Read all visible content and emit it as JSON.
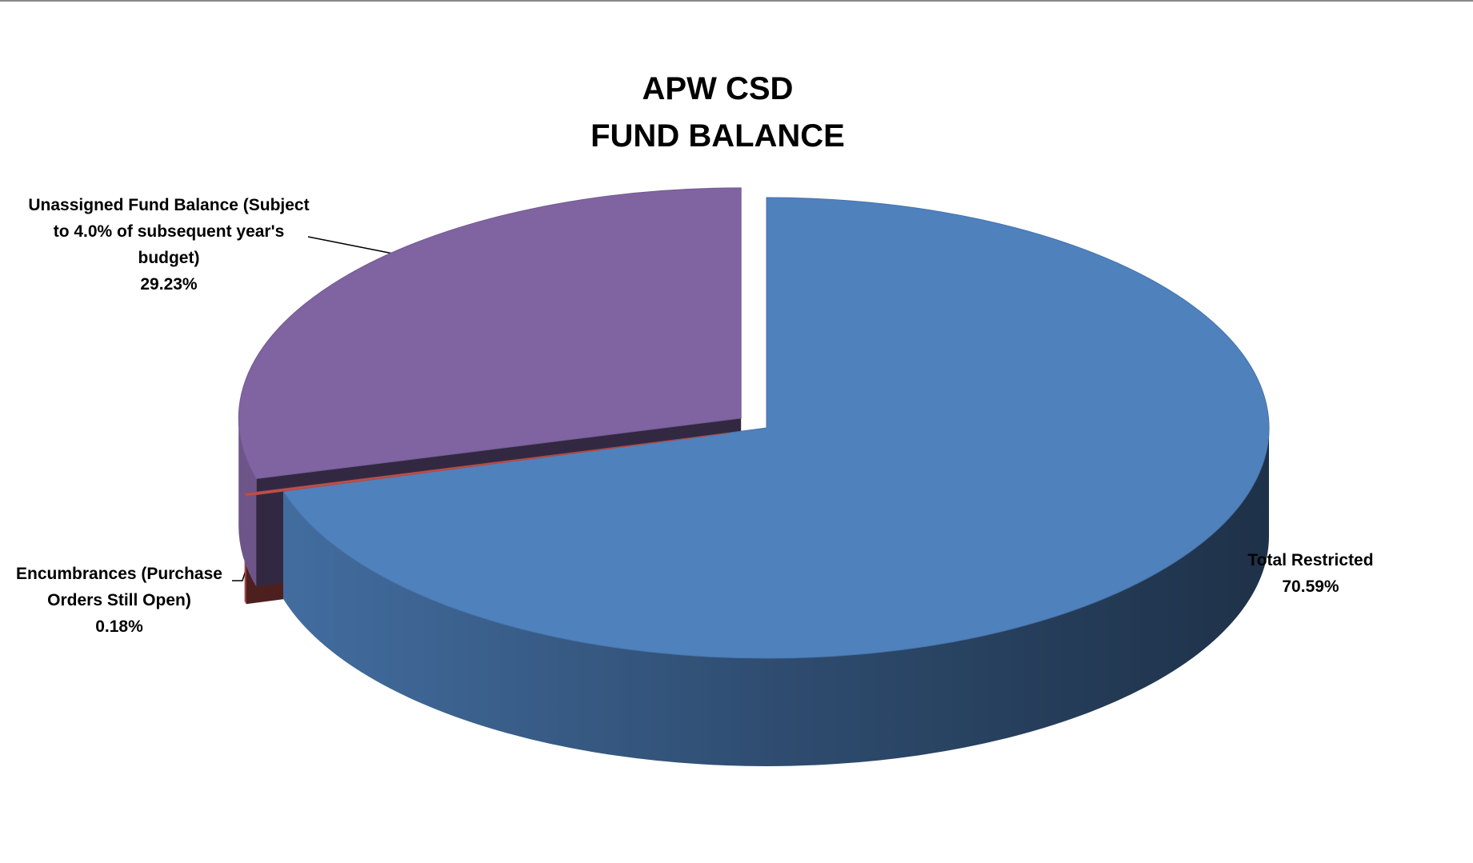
{
  "chart_data": {
    "type": "pie",
    "title": [
      "APW CSD",
      "FUND BALANCE"
    ],
    "categories": [
      "Total Restricted",
      "Encumbrances (Purchase Orders Still Open)",
      "Unassigned Fund Balance (Subject to 4.0% of subsequent year's budget)"
    ],
    "values": [
      70.59,
      0.18,
      29.23
    ],
    "value_labels": [
      "70.59%",
      "0.18%",
      "29.23%"
    ],
    "colors": [
      "#4f81bd",
      "#c0504d",
      "#8064a2"
    ],
    "three_d": true
  }
}
